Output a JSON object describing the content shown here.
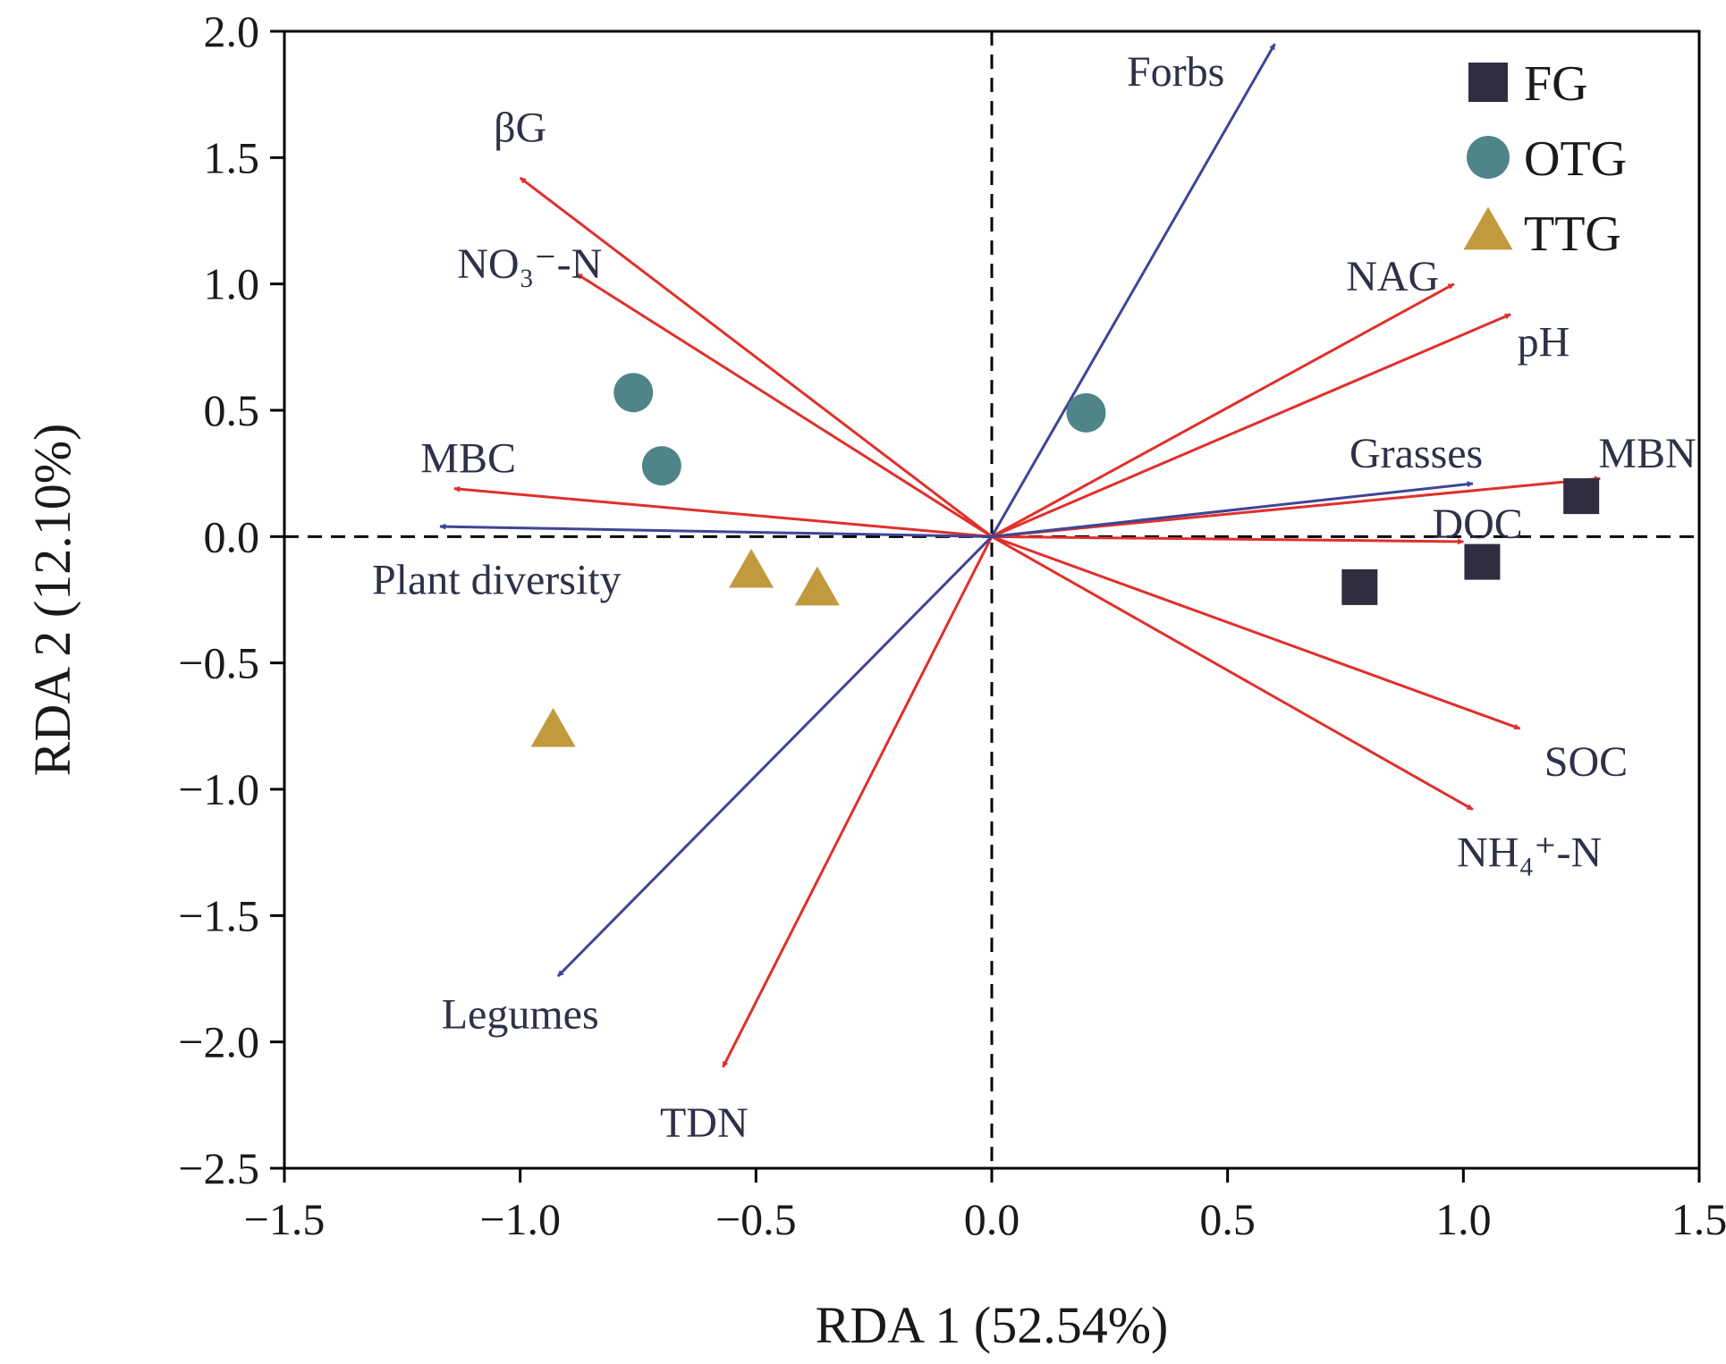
{
  "chart_data": {
    "type": "scatter",
    "subtype": "rda-biplot",
    "xlabel": "RDA 1 (52.54%)",
    "ylabel": "RDA 2 (12.10%)",
    "xlim": [
      -1.5,
      1.5
    ],
    "ylim": [
      -2.5,
      2.0
    ],
    "xticks": [
      -1.5,
      -1.0,
      -0.5,
      0.0,
      0.5,
      1.0,
      1.5
    ],
    "yticks": [
      -2.5,
      -2.0,
      -1.5,
      -1.0,
      -0.5,
      0.0,
      0.5,
      1.0,
      1.5,
      2.0
    ],
    "xtick_labels": [
      "−1.5",
      "−1.0",
      "−0.5",
      "0.0",
      "0.5",
      "1.0",
      "1.5"
    ],
    "ytick_labels": [
      "−2.5",
      "−2.0",
      "−1.5",
      "−1.0",
      "−0.5",
      "0.0",
      "0.5",
      "1.0",
      "1.5",
      "2.0"
    ],
    "zero_lines": true,
    "legend_position": "top-right",
    "colors": {
      "soil_vector": "#e0302a",
      "plant_vector": "#3f4595",
      "FG": "#2e2e3f",
      "OTG": "#4f8589",
      "TTG": "#c29a3e"
    },
    "groups": [
      {
        "name": "FG",
        "marker": "square",
        "points": [
          [
            0.78,
            -0.2
          ],
          [
            1.04,
            -0.1
          ],
          [
            1.25,
            0.16
          ]
        ]
      },
      {
        "name": "OTG",
        "marker": "circle",
        "points": [
          [
            -0.76,
            0.57
          ],
          [
            -0.7,
            0.28
          ],
          [
            0.2,
            0.49
          ]
        ]
      },
      {
        "name": "TTG",
        "marker": "triangle",
        "points": [
          [
            -0.51,
            -0.14
          ],
          [
            -0.37,
            -0.21
          ],
          [
            -0.93,
            -0.77
          ]
        ]
      }
    ],
    "vectors": [
      {
        "label": "βG",
        "kind": "soil",
        "x": -1.0,
        "y": 1.42
      },
      {
        "label": "NO₃⁻-N",
        "kind": "soil",
        "x": -0.88,
        "y": 1.04
      },
      {
        "label": "MBC",
        "kind": "soil",
        "x": -1.14,
        "y": 0.19
      },
      {
        "label": "NAG",
        "kind": "soil",
        "x": 0.98,
        "y": 1.0
      },
      {
        "label": "pH",
        "kind": "soil",
        "x": 1.1,
        "y": 0.88
      },
      {
        "label": "MBN",
        "kind": "soil",
        "x": 1.29,
        "y": 0.23
      },
      {
        "label": "DOC",
        "kind": "soil",
        "x": 1.0,
        "y": -0.02
      },
      {
        "label": "SOC",
        "kind": "soil",
        "x": 1.12,
        "y": -0.76
      },
      {
        "label": "NH₄⁺-N",
        "kind": "soil",
        "x": 1.02,
        "y": -1.08
      },
      {
        "label": "TDN",
        "kind": "soil",
        "x": -0.57,
        "y": -2.1
      },
      {
        "label": "Forbs",
        "kind": "plant",
        "x": 0.6,
        "y": 1.95
      },
      {
        "label": "Grasses",
        "kind": "plant",
        "x": 1.02,
        "y": 0.21
      },
      {
        "label": "Plant diversity",
        "kind": "plant",
        "x": -1.17,
        "y": 0.04
      },
      {
        "label": "Legumes",
        "kind": "plant",
        "x": -0.92,
        "y": -1.74
      }
    ]
  }
}
